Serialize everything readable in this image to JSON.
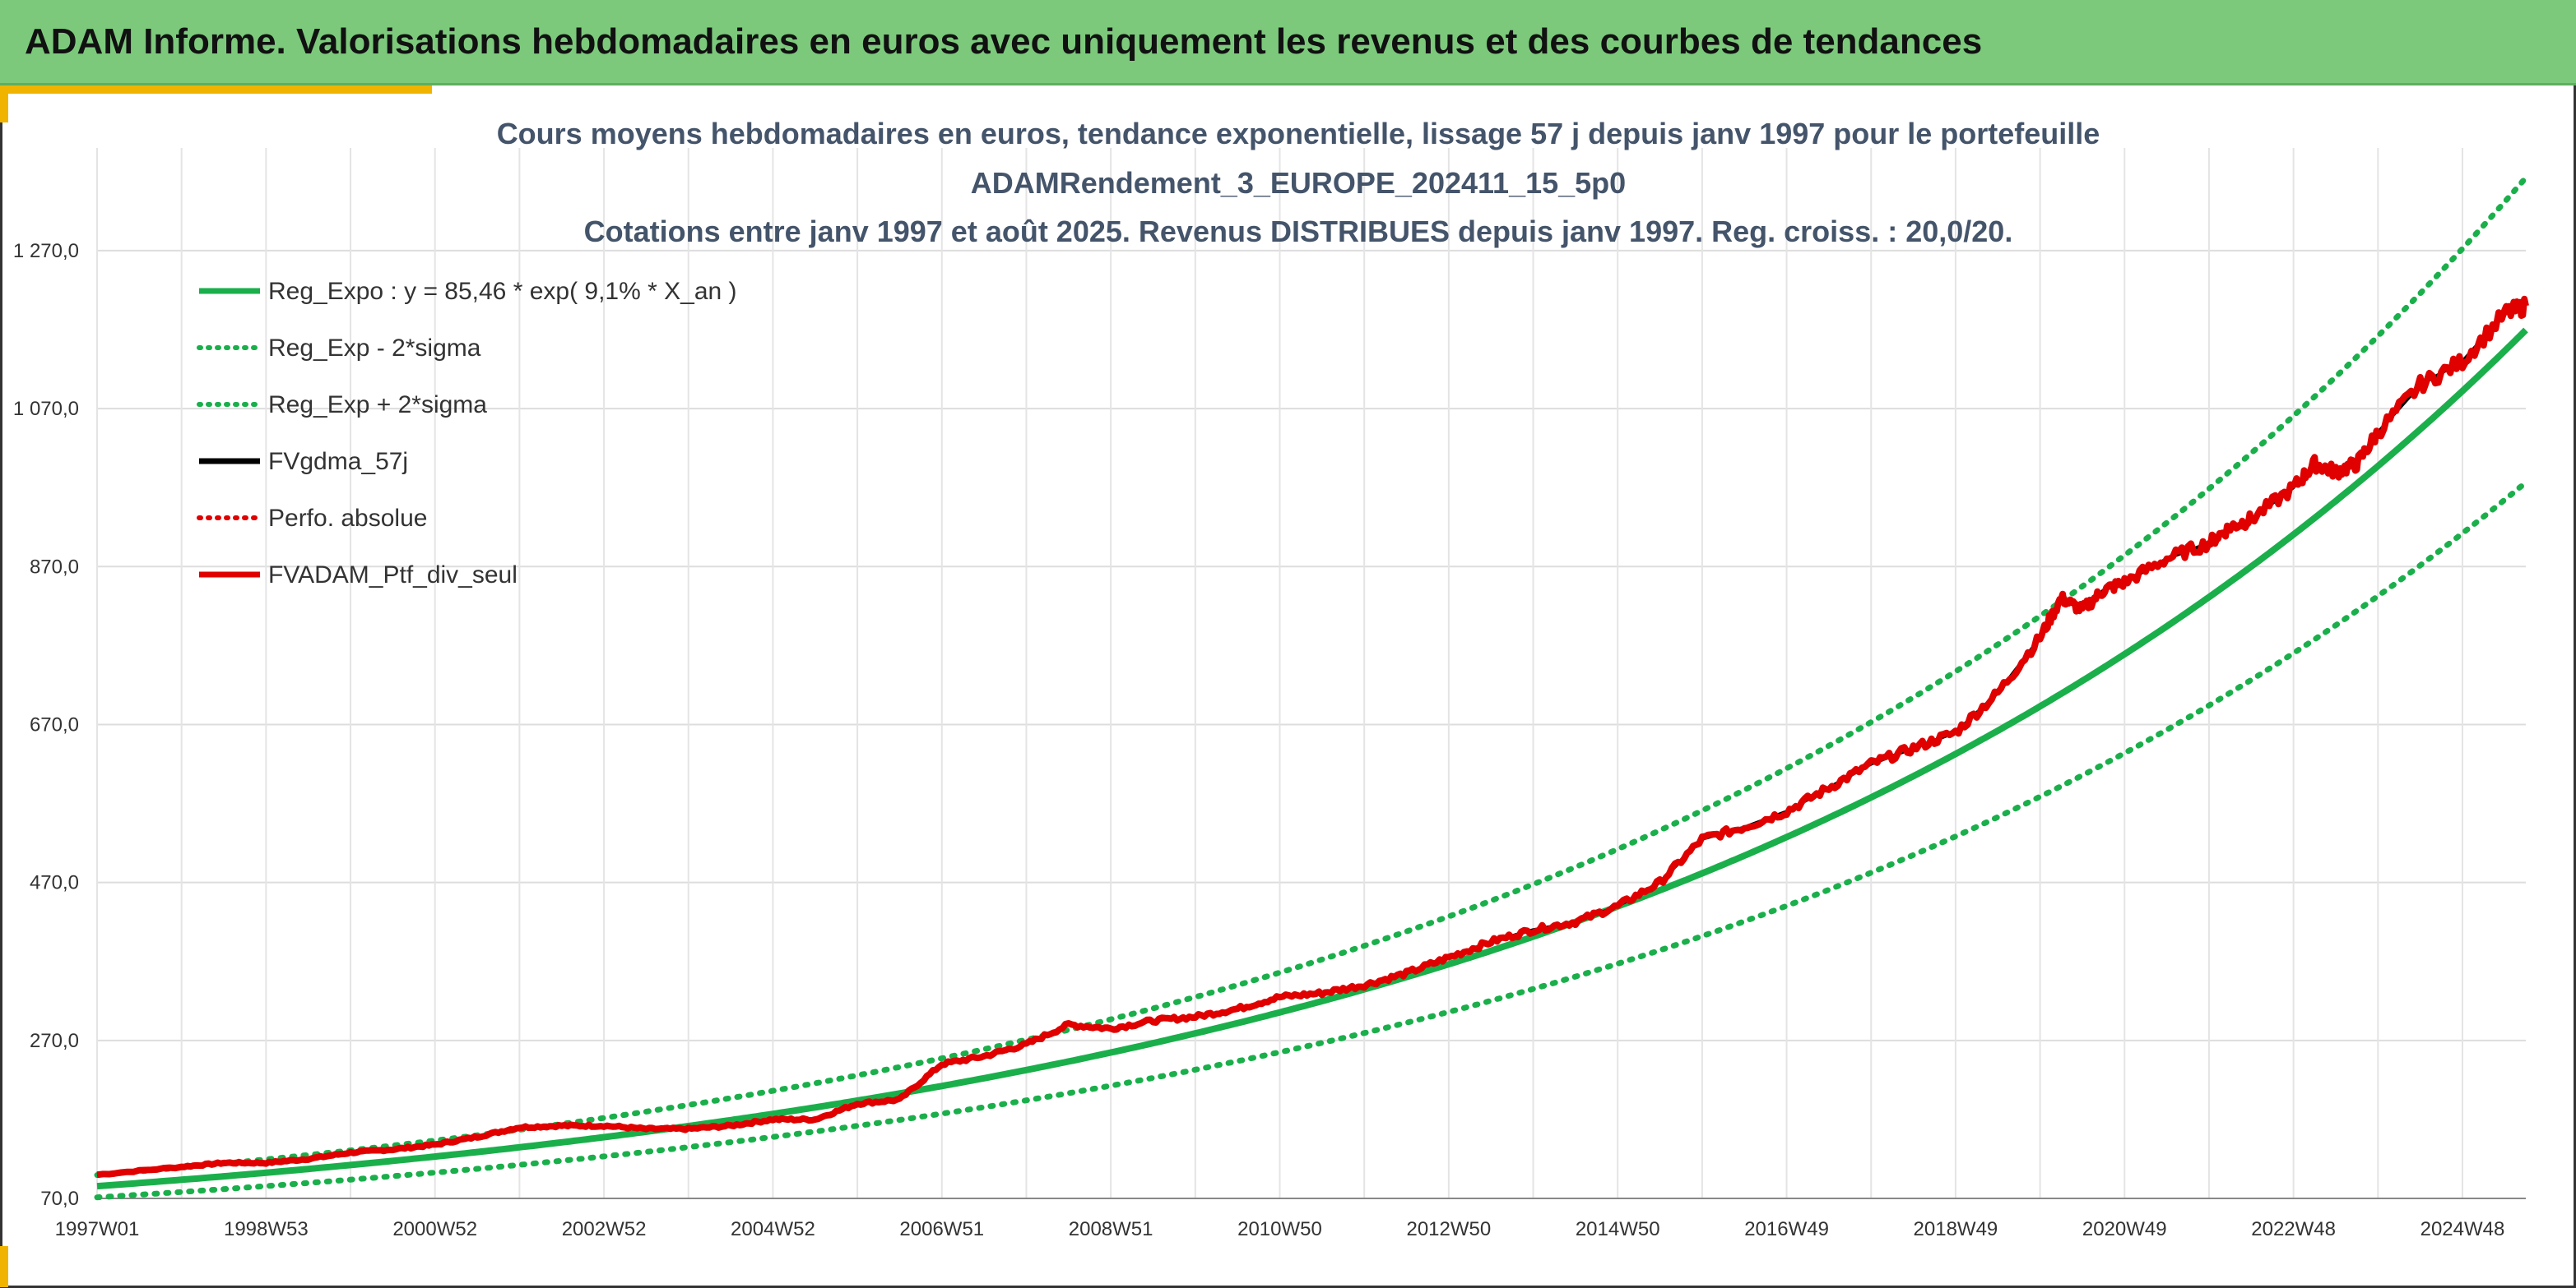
{
  "banner": {
    "title": "ADAM Informe. Valorisations hebdomadaires en euros avec uniquement les revenus et des courbes de tendances",
    "background": "#7cc97c",
    "accent": "#f0b400"
  },
  "chart_data": {
    "type": "line",
    "title_lines": [
      "Cours moyens hebdomadaires en euros, tendance exponentielle, lissage 57 j depuis janv 1997 pour le portefeuille",
      "ADAMRendement_3_EUROPE_202411_15_5p0",
      "Cotations entre janv 1997 et août 2025. Revenus DISTRIBUES depuis janv 1997. Reg. croiss. : 20,0/20."
    ],
    "x_tick_labels": [
      "1997W01",
      "1998W53",
      "2000W52",
      "2002W52",
      "2004W52",
      "2006W51",
      "2008W51",
      "2010W50",
      "2012W50",
      "2014W50",
      "2016W49",
      "2018W49",
      "2020W49",
      "2022W48",
      "2024W48"
    ],
    "x_tick_years": [
      1997.0,
      1999.0,
      2001.0,
      2003.0,
      2005.0,
      2007.0,
      2009.0,
      2011.0,
      2013.0,
      2015.0,
      2017.0,
      2019.0,
      2021.0,
      2023.0,
      2025.0
    ],
    "x_range": [
      1997.0,
      2025.75
    ],
    "y_tick_labels": [
      "70,0",
      "270,0",
      "470,0",
      "670,0",
      "870,0",
      "1 070,0",
      "1 270,0"
    ],
    "y_ticks": [
      70,
      270,
      470,
      670,
      870,
      1070,
      1270
    ],
    "ylim": [
      70,
      1400
    ],
    "grid": true,
    "legend_position": "top-left",
    "regression": {
      "a": 85.46,
      "rate": 0.091,
      "sigma_band": 0.165
    },
    "series": [
      {
        "name": "Reg_Expo : y = 85,46 * exp( 9,1% *  X_an )",
        "color": "#1aaf4b",
        "style": "solid"
      },
      {
        "name": "Reg_Exp - 2*sigma",
        "color": "#1aaf4b",
        "style": "dotted"
      },
      {
        "name": "Reg_Exp + 2*sigma",
        "color": "#1aaf4b",
        "style": "dotted"
      },
      {
        "name": "FVgdma_57j",
        "color": "#000000",
        "style": "solid"
      },
      {
        "name": "Perfo. absolue",
        "color": "#e00000",
        "style": "dotted"
      },
      {
        "name": "FVADAM_Ptf_div_seul",
        "color": "#e00000",
        "style": "solid",
        "x": [
          1997.0,
          1998.0,
          1998.5,
          1999.0,
          1999.5,
          2000.0,
          2000.5,
          2001.0,
          2001.5,
          2002.0,
          2002.5,
          2003.0,
          2003.5,
          2004.0,
          2004.5,
          2005.0,
          2005.5,
          2006.0,
          2006.5,
          2007.0,
          2007.5,
          2008.0,
          2008.5,
          2009.0,
          2009.5,
          2010.0,
          2010.5,
          2011.0,
          2011.5,
          2012.0,
          2012.5,
          2013.0,
          2013.5,
          2014.0,
          2014.5,
          2015.0,
          2015.5,
          2016.0,
          2016.5,
          2017.0,
          2017.5,
          2018.0,
          2018.5,
          2019.0,
          2019.5,
          2020.0,
          2020.25,
          2020.5,
          2020.75,
          2021.0,
          2021.5,
          2022.0,
          2022.25,
          2022.5,
          2023.0,
          2023.25,
          2023.5,
          2023.75,
          2024.0,
          2024.5,
          2025.0,
          2025.5,
          2025.75
        ],
        "values": [
          100,
          110,
          115,
          115,
          120,
          128,
          132,
          138,
          148,
          160,
          162,
          162,
          158,
          158,
          162,
          170,
          170,
          190,
          195,
          240,
          250,
          265,
          290,
          285,
          295,
          300,
          310,
          325,
          330,
          340,
          355,
          375,
          395,
          410,
          420,
          440,
          470,
          525,
          540,
          560,
          590,
          620,
          640,
          660,
          710,
          780,
          830,
          815,
          840,
          850,
          880,
          900,
          920,
          930,
          970,
          1000,
          990,
          1000,
          1040,
          1100,
          1130,
          1190,
          1200
        ]
      }
    ]
  }
}
